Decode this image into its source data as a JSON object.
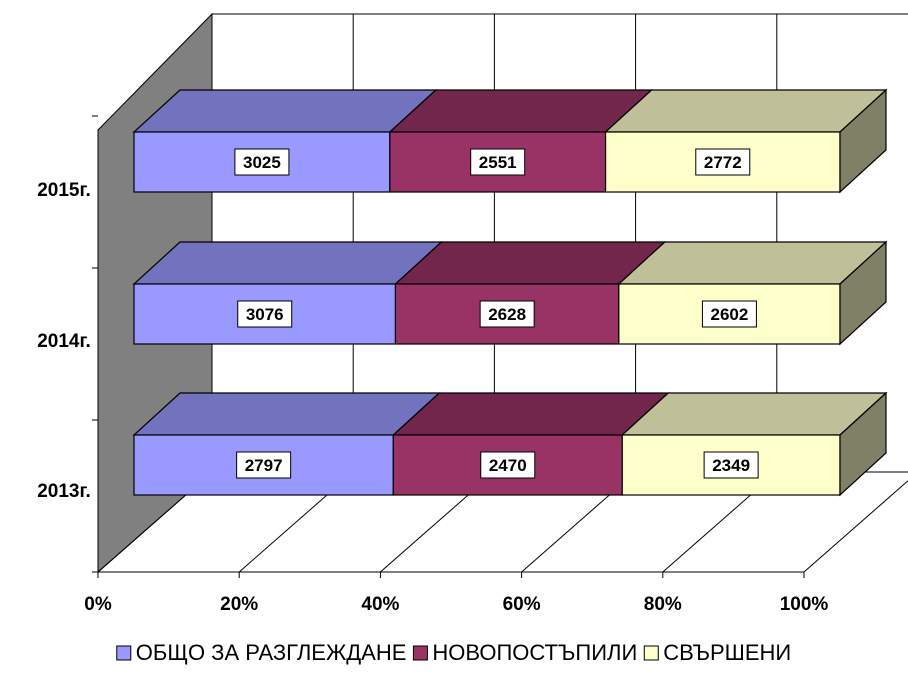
{
  "chart_data": {
    "type": "bar",
    "stacked": "percent",
    "orientation": "horizontal",
    "three_d": true,
    "categories": [
      "2013г.",
      "2014г.",
      "2015г."
    ],
    "series": [
      {
        "name": "ОБЩО ЗА РАЗГЛЕЖДАНЕ",
        "values": [
          2797,
          3076,
          3025
        ],
        "color": "#9999ff",
        "top_color": "#7272bf",
        "side_color": "#4c4c80"
      },
      {
        "name": "НОВОПОСТЪПИЛИ",
        "values": [
          2470,
          2628,
          2551
        ],
        "color": "#993366",
        "top_color": "#73264c",
        "side_color": "#4c1933"
      },
      {
        "name": "СВЪРШЕНИ",
        "values": [
          2349,
          2602,
          2772
        ],
        "color": "#ffffcc",
        "top_color": "#bfbf99",
        "side_color": "#808066"
      }
    ],
    "x_ticks": [
      "0%",
      "20%",
      "40%",
      "60%",
      "80%",
      "100%"
    ],
    "xlim": [
      0,
      100
    ],
    "grid": true,
    "legend_position": "bottom",
    "wall_color": "#808080",
    "title": "",
    "xlabel": "",
    "ylabel": ""
  }
}
